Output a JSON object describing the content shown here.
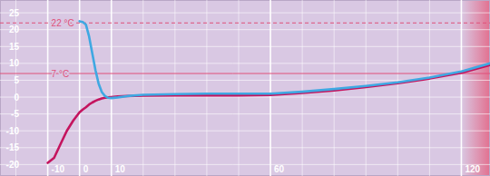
{
  "chart_data": {
    "type": "line",
    "x": [
      -10,
      -8,
      -6,
      -4,
      -2,
      0,
      1,
      2,
      3,
      4,
      5,
      6,
      7,
      8,
      9,
      10,
      12,
      15,
      20,
      30,
      40,
      50,
      60,
      70,
      80,
      90,
      100,
      110,
      120,
      129
    ],
    "series": [
      {
        "name": "",
        "color": "#c4145e",
        "values": [
          -19.5,
          -18,
          -14,
          -10,
          -7,
          -4.5,
          -3.7,
          -3,
          -2.2,
          -1.6,
          -1.1,
          -0.7,
          -0.4,
          -0.2,
          -0.1,
          0,
          0.2,
          0.3,
          0.4,
          0.5,
          0.5,
          0.5,
          0.6,
          1.2,
          2,
          3,
          4.1,
          5.5,
          7.2,
          9.5
        ]
      },
      {
        "name": "",
        "color": "#3fa8e2",
        "values": [
          null,
          null,
          null,
          null,
          null,
          22.5,
          22.3,
          21.5,
          18,
          13,
          8,
          4,
          1.5,
          0.3,
          -0.2,
          -0.3,
          -0.1,
          0.3,
          0.7,
          0.9,
          1,
          1,
          1,
          1.6,
          2.4,
          3.3,
          4.4,
          5.8,
          7.6,
          10
        ]
      }
    ],
    "xlim": [
      -25,
      129
    ],
    "ylim": [
      -23.4,
      28.8
    ],
    "xticks": [
      -10,
      0,
      10,
      60,
      120
    ],
    "yticks": [
      -20,
      -15,
      -10,
      -5,
      0,
      5,
      10,
      15,
      20,
      25
    ],
    "grid": true,
    "annotations": [
      {
        "label": "22 °C",
        "value": 22,
        "line_style": "dashed",
        "color": "#e0507a"
      },
      {
        "label": "7 °C",
        "value": 7,
        "line_style": "solid",
        "color": "#e0507a"
      }
    ]
  }
}
